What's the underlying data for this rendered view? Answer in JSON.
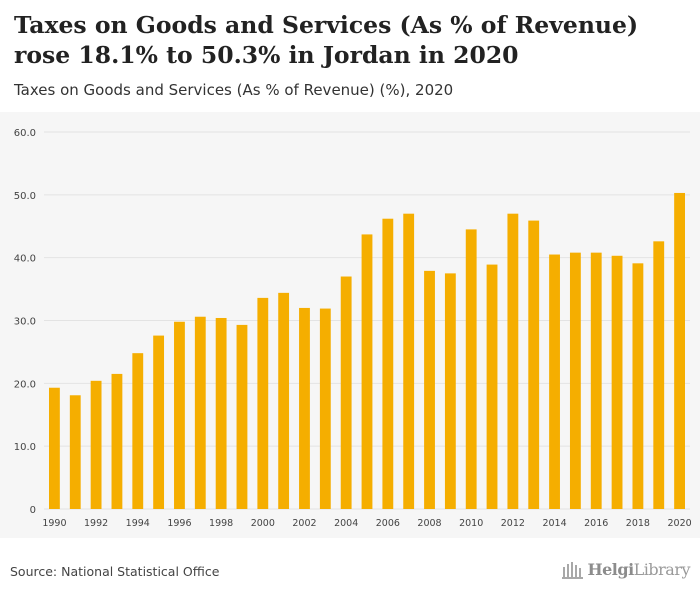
{
  "header": {
    "title": "Taxes on Goods and Services (As % of Revenue) rose 18.1% to 50.3% in Jordan in 2020",
    "subtitle": "Taxes on Goods and Services (As % of Revenue) (%), 2020"
  },
  "footer": {
    "source": "Source: National Statistical Office",
    "brand_bold": "Helgi",
    "brand_regular": "Library"
  },
  "colors": {
    "bar": "#f5ae00",
    "grid": "#e3e3e3",
    "tick_text": "#444444",
    "plot_background": "#f6f6f6"
  },
  "chart_data": {
    "type": "bar",
    "title": "Taxes on Goods and Services (As % of Revenue) (%), 2020",
    "categories": [
      "1990",
      "1991",
      "1992",
      "1993",
      "1994",
      "1995",
      "1996",
      "1997",
      "1998",
      "1999",
      "2000",
      "2001",
      "2002",
      "2003",
      "2004",
      "2005",
      "2006",
      "2007",
      "2008",
      "2009",
      "2010",
      "2011",
      "2012",
      "2013",
      "2014",
      "2015",
      "2016",
      "2017",
      "2018",
      "2019",
      "2020"
    ],
    "values": [
      19.3,
      18.1,
      20.4,
      21.5,
      24.8,
      27.6,
      29.8,
      30.6,
      30.4,
      29.3,
      33.6,
      34.4,
      32.0,
      31.9,
      37.0,
      43.7,
      46.2,
      47.0,
      37.9,
      37.5,
      44.5,
      38.9,
      47.0,
      45.9,
      40.5,
      40.8,
      40.8,
      40.3,
      39.1,
      42.6,
      50.3
    ],
    "ylim": [
      0,
      60
    ],
    "yticks": [
      0,
      10,
      20,
      30,
      40,
      50,
      60
    ],
    "ytick_labels": [
      "0",
      "10.0",
      "20.0",
      "30.0",
      "40.0",
      "50.0",
      "60.0"
    ],
    "xtick_labels": [
      "1990",
      "1992",
      "1994",
      "1996",
      "1998",
      "2000",
      "2002",
      "2004",
      "2006",
      "2008",
      "2010",
      "2012",
      "2014",
      "2016",
      "2018",
      "2020"
    ],
    "grid": true,
    "legend": "none"
  }
}
